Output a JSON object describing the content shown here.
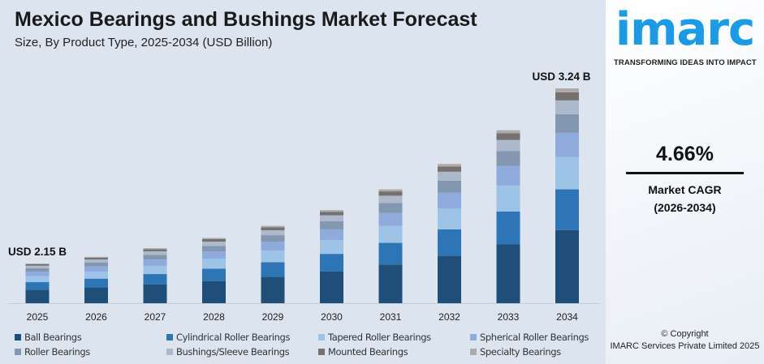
{
  "header": {
    "title": "Mexico Bearings and Bushings Market Forecast",
    "subtitle": "Size, By Product Type, 2025-2034 (USD Billion)"
  },
  "brand": {
    "logo": "imarc",
    "tagline": "TRANSFORMING IDEAS INTO IMPACT",
    "color": "#1a9be8"
  },
  "kpi": {
    "value": "4.66%",
    "label": "Market CAGR",
    "period": "(2026-2034)"
  },
  "footer": {
    "copyright": "© Copyright",
    "company": "IMARC Services Private Limited 2025"
  },
  "chart_data": {
    "type": "bar",
    "stacked": true,
    "title": "Mexico Bearings and Bushings Market Forecast",
    "subtitle": "Size, By Product Type, 2025-2034 (USD Billion)",
    "categories": [
      "2025",
      "2026",
      "2027",
      "2028",
      "2029",
      "2030",
      "2031",
      "2032",
      "2033",
      "2034"
    ],
    "totals": [
      2.15,
      2.25,
      2.36,
      2.47,
      2.58,
      2.7,
      2.83,
      2.96,
      3.1,
      3.24
    ],
    "annotations": [
      {
        "category": "2025",
        "text": "USD 2.15 B"
      },
      {
        "category": "2034",
        "text": "USD 3.24 B"
      }
    ],
    "series": [
      {
        "name": "Ball Bearings",
        "color": "#1f4e79",
        "share": 0.34
      },
      {
        "name": "Cylindrical Roller Bearings",
        "color": "#2e75b6",
        "share": 0.19
      },
      {
        "name": "Tapered Roller Bearings",
        "color": "#9dc3e6",
        "share": 0.15
      },
      {
        "name": "Spherical Roller Bearings",
        "color": "#8faadc",
        "share": 0.113
      },
      {
        "name": "Roller Bearings",
        "color": "#8497b0",
        "share": 0.087
      },
      {
        "name": "Bushings/Sleeve Bearings",
        "color": "#adb9ca",
        "share": 0.064
      },
      {
        "name": "Mounted Bearings",
        "color": "#767171",
        "share": 0.038
      },
      {
        "name": "Specialty Bearings",
        "color": "#aeaaaa",
        "share": 0.018
      }
    ],
    "legend": "bottom",
    "grid": false
  }
}
